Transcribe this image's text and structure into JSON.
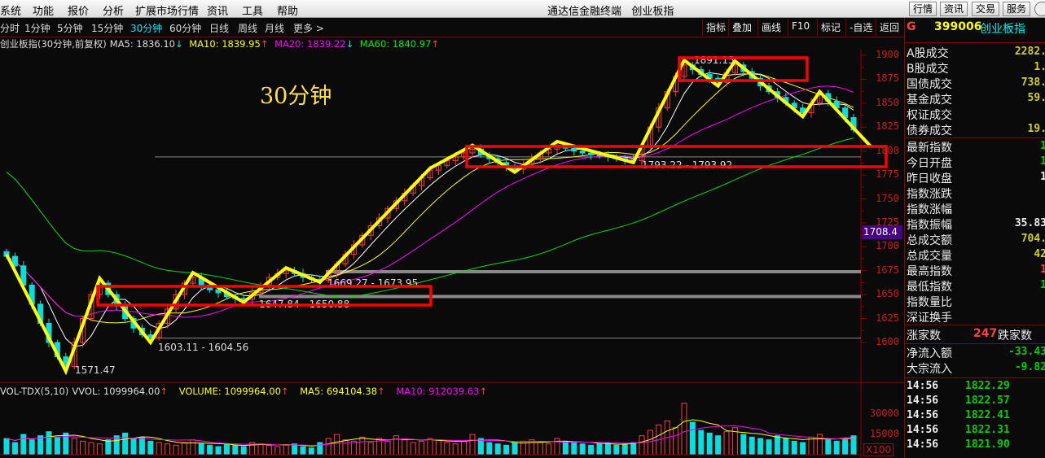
{
  "menu": {
    "items": [
      "系统",
      "功能",
      "报价",
      "分析",
      "扩展市场行情",
      "资讯",
      "工具",
      "帮助"
    ],
    "title": "通达信金融终端   创业板指",
    "buttons": [
      "行情",
      "资讯",
      "交易",
      "服务"
    ]
  },
  "periods": {
    "items": [
      "分时",
      "1分钟",
      "5分钟",
      "15分钟",
      "30分钟",
      "60分钟",
      "日线",
      "周线",
      "月线",
      "更多 >"
    ],
    "active": 4
  },
  "toolbar": [
    "指标",
    "叠加",
    "画线",
    "F10",
    "标记",
    "-自选",
    "返回"
  ],
  "info": {
    "name": "创业板指(30分钟,前复权)",
    "ma5": "MA5: 1836.10",
    "ma10": "MA10: 1839.95",
    "ma20": "MA20: 1839.22",
    "ma60": "MA60: 1840.97"
  },
  "overlay_title": "30分钟",
  "vol_info": {
    "name": "VOL-TDX(5,10)",
    "vvol": "VVOL: 1099964.00",
    "volume": "VOLUME: 1099964.00",
    "ma5": "MA5: 694104.38",
    "ma10": "MA10: 912039.63"
  },
  "stock": {
    "flag": "G",
    "code": "399006",
    "name": "创业板指"
  },
  "price_tag": "1708.4",
  "axis": {
    "price_ticks": [
      "1900",
      "1875",
      "1850",
      "1825",
      "1800",
      "1775",
      "1750",
      "1725",
      "1700",
      "1675",
      "1650",
      "1625",
      "1600"
    ],
    "vol_ticks": [
      "30000",
      "15000"
    ],
    "vol_unit": "X100"
  },
  "panel": {
    "rows1": [
      {
        "label": "A股成交",
        "value": "2282."
      },
      {
        "label": "B股成交",
        "value": "1."
      },
      {
        "label": "国债成交",
        "value": "738."
      },
      {
        "label": "基金成交",
        "value": "59."
      },
      {
        "label": "权证成交",
        "value": ""
      },
      {
        "label": "债券成交",
        "value": "19."
      }
    ],
    "rows2": [
      {
        "label": "最新指数",
        "value": "1",
        "color": "#00d000"
      },
      {
        "label": "今日开盘",
        "value": "1",
        "color": "#00d000"
      },
      {
        "label": "昨日收盘",
        "value": "1",
        "color": "#eeeeee"
      },
      {
        "label": "指数涨跌",
        "value": ""
      },
      {
        "label": "指数涨幅",
        "value": ""
      },
      {
        "label": "指数振幅",
        "value": "35.83",
        "color": "#eeeeee"
      },
      {
        "label": "总成交额",
        "value": "704.",
        "color": "#d0d020"
      },
      {
        "label": "总成交量",
        "value": "42",
        "color": "#d0d020"
      },
      {
        "label": "最高指数",
        "value": "1",
        "color": "#ff4040"
      },
      {
        "label": "最低指数",
        "value": "1",
        "color": "#00d000"
      },
      {
        "label": "指数量比",
        "value": ""
      },
      {
        "label": "深证换手",
        "value": ""
      }
    ],
    "up_label": "涨家数",
    "up_count": "247",
    "down_label": "跌家数",
    "flow": [
      {
        "label": "净流入额",
        "value": "-33.43"
      },
      {
        "label": "大宗流入",
        "value": "-9.82"
      }
    ],
    "ticks": [
      {
        "time": "14:56",
        "price": "1822.29"
      },
      {
        "time": "14:56",
        "price": "1822.57"
      },
      {
        "time": "14:56",
        "price": "1822.41"
      },
      {
        "time": "14:56",
        "price": "1822.31"
      },
      {
        "time": "14:56",
        "price": "1821.90"
      }
    ]
  },
  "annotations": {
    "low": "1571.47",
    "a": "1603.11 - 1604.56",
    "b": "1647.84 - 1650.88",
    "c": "1669.27 - 1673.95",
    "d": "1793.22 - 1793.92",
    "high": "1891.15"
  },
  "colors": {
    "up": "#ff3c3c",
    "down": "#00e0e0",
    "ma5": "#ffffff",
    "ma10": "#ffff00",
    "ma20": "#ff00ff",
    "ma60": "#00e000",
    "zigzag": "#ffff00",
    "box": "#ff0000"
  },
  "chart_data": {
    "type": "candlestick",
    "ylim": [
      1580,
      1905
    ],
    "closes": [
      1690,
      1680,
      1660,
      1640,
      1620,
      1600,
      1585,
      1575,
      1600,
      1625,
      1650,
      1662,
      1650,
      1638,
      1625,
      1615,
      1608,
      1605,
      1620,
      1635,
      1650,
      1662,
      1668,
      1660,
      1655,
      1652,
      1648,
      1646,
      1645,
      1652,
      1660,
      1668,
      1672,
      1675,
      1672,
      1668,
      1666,
      1665,
      1672,
      1682,
      1692,
      1702,
      1712,
      1722,
      1730,
      1740,
      1748,
      1756,
      1764,
      1772,
      1780,
      1785,
      1790,
      1794,
      1798,
      1802,
      1796,
      1792,
      1788,
      1784,
      1781,
      1786,
      1792,
      1798,
      1802,
      1806,
      1803,
      1800,
      1798,
      1796,
      1795,
      1794,
      1792,
      1791,
      1790,
      1805,
      1825,
      1845,
      1862,
      1878,
      1890,
      1885,
      1880,
      1876,
      1872,
      1882,
      1890,
      1883,
      1876,
      1868,
      1862,
      1856,
      1850,
      1845,
      1840,
      1850,
      1860,
      1852,
      1845,
      1835,
      1822
    ],
    "volumes": [
      12000,
      9000,
      15000,
      11000,
      14000,
      17000,
      13000,
      16000,
      12000,
      10000,
      9000,
      8000,
      11000,
      14000,
      16000,
      12000,
      13000,
      10000,
      9000,
      8000,
      7000,
      9000,
      11000,
      8000,
      7000,
      6000,
      8000,
      7000,
      6000,
      9000,
      8000,
      7000,
      6000,
      7000,
      8000,
      6000,
      5000,
      9000,
      12000,
      15000,
      11000,
      10000,
      13000,
      9000,
      12000,
      10000,
      14000,
      11000,
      9000,
      10000,
      12000,
      11000,
      9000,
      8000,
      10000,
      15000,
      12000,
      9000,
      8000,
      7000,
      9000,
      10000,
      11000,
      9000,
      8000,
      12000,
      10000,
      9000,
      8000,
      7000,
      8000,
      9000,
      7000,
      8000,
      9000,
      14000,
      18000,
      22000,
      25000,
      20000,
      38000,
      24000,
      18000,
      16000,
      14000,
      17000,
      20000,
      15000,
      13000,
      12000,
      11000,
      14000,
      12000,
      10000,
      9000,
      13000,
      15000,
      11000,
      10000,
      12000,
      14000
    ],
    "levels": [
      1673.95,
      1648,
      1604.56,
      1793.92
    ],
    "zigzag": [
      [
        0,
        1692
      ],
      [
        7,
        1570
      ],
      [
        11,
        1667
      ],
      [
        17,
        1600
      ],
      [
        22,
        1673
      ],
      [
        28,
        1642
      ],
      [
        33,
        1678
      ],
      [
        37,
        1663
      ],
      [
        50,
        1782
      ],
      [
        55,
        1806
      ],
      [
        60,
        1778
      ],
      [
        65,
        1810
      ],
      [
        74,
        1788
      ],
      [
        80,
        1895
      ],
      [
        84,
        1868
      ],
      [
        86,
        1894
      ],
      [
        94,
        1836
      ],
      [
        96,
        1862
      ],
      [
        102,
        1805
      ]
    ]
  }
}
